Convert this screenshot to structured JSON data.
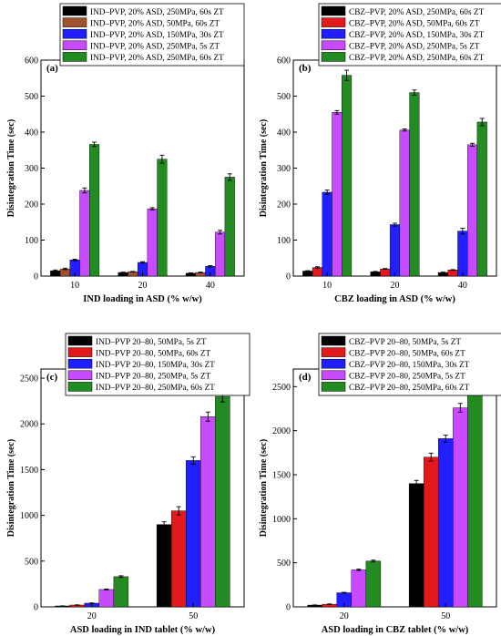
{
  "colors": {
    "black": "#000000",
    "red": "#e31a1c",
    "blue": "#1f1fff",
    "violet": "#7b2ff7",
    "magenta": "#c84bff",
    "green": "#228b22",
    "brown": "#a0522d",
    "light_purple": "#b05cff",
    "axis": "#000000"
  },
  "chart_data": [
    {
      "id": "a",
      "type": "bar",
      "panel_label": "(a)",
      "xlabel": "IND loading in ASD (% w/w)",
      "ylabel": "Disintegration Time (sec)",
      "ylim": [
        0,
        600
      ],
      "yticks": [
        0,
        100,
        200,
        300,
        400,
        500,
        600
      ],
      "categories": [
        "10",
        "20",
        "40"
      ],
      "legend_position": "top",
      "series": [
        {
          "name": "IND–PVP, 20% ASD, 250MPa, 60s ZT",
          "color": "#000000",
          "values": [
            15,
            10,
            8
          ],
          "errors": [
            2,
            1,
            1
          ]
        },
        {
          "name": "IND–PVP, 20% ASD, 50MPa, 60s ZT",
          "color": "#a0522d",
          "values": [
            20,
            12,
            10
          ],
          "errors": [
            2,
            1,
            1
          ]
        },
        {
          "name": "IND–PVP, 20% ASD, 150MPa, 30s ZT",
          "color": "#1f1fff",
          "values": [
            45,
            38,
            27
          ],
          "errors": [
            2,
            2,
            2
          ]
        },
        {
          "name": "IND–PVP, 20% ASD, 250MPa, 5s ZT",
          "color": "#c84bff",
          "values": [
            238,
            187,
            122
          ],
          "errors": [
            7,
            3,
            5
          ]
        },
        {
          "name": "IND–PVP, 20% ASD, 250MPa, 60s ZT",
          "color": "#228b22",
          "values": [
            366,
            325,
            275
          ],
          "errors": [
            6,
            11,
            9
          ]
        }
      ]
    },
    {
      "id": "b",
      "type": "bar",
      "panel_label": "(b)",
      "xlabel": "CBZ loading in ASD (% w/w)",
      "ylabel": "Disintegration Time (sec)",
      "ylim": [
        0,
        600
      ],
      "yticks": [
        0,
        100,
        200,
        300,
        400,
        500,
        600
      ],
      "categories": [
        "10",
        "20",
        "40"
      ],
      "legend_position": "top",
      "series": [
        {
          "name": "CBZ–PVP, 20% ASD, 250MPa, 60s ZT",
          "color": "#000000",
          "values": [
            14,
            12,
            10
          ],
          "errors": [
            1,
            1,
            1
          ]
        },
        {
          "name": "CBZ–PVP, 20% ASD, 50MPa, 60s ZT",
          "color": "#e31a1c",
          "values": [
            24,
            20,
            17
          ],
          "errors": [
            2,
            1,
            1
          ]
        },
        {
          "name": "CBZ–PVP, 20% ASD, 150MPa, 30s ZT",
          "color": "#1f1fff",
          "values": [
            233,
            143,
            125
          ],
          "errors": [
            6,
            4,
            8
          ]
        },
        {
          "name": "CBZ–PVP, 20% ASD, 250MPa, 5s ZT",
          "color": "#c84bff",
          "values": [
            455,
            406,
            365
          ],
          "errors": [
            5,
            3,
            4
          ]
        },
        {
          "name": "CBZ–PVP, 20% ASD, 250MPa, 60s ZT",
          "color": "#228b22",
          "values": [
            558,
            510,
            428
          ],
          "errors": [
            14,
            7,
            10
          ]
        }
      ]
    },
    {
      "id": "c",
      "type": "bar",
      "panel_label": "(c)",
      "xlabel": "ASD loading in IND tablet (% w/w)",
      "ylabel": "Disintegration Time (sec)",
      "ylim": [
        0,
        2600
      ],
      "yticks": [
        0,
        500,
        1000,
        1500,
        2000,
        2500
      ],
      "categories": [
        "20",
        "50"
      ],
      "legend_position": "top",
      "series": [
        {
          "name": "IND–PVP 20–80, 50MPa, 5s ZT",
          "color": "#000000",
          "values": [
            10,
            900
          ],
          "errors": [
            1,
            30
          ]
        },
        {
          "name": "IND–PVP 20–80, 50MPa, 60s ZT",
          "color": "#e31a1c",
          "values": [
            20,
            1050
          ],
          "errors": [
            2,
            45
          ]
        },
        {
          "name": "IND–PVP 20–80, 150MPa, 30s ZT",
          "color": "#1f1fff",
          "values": [
            40,
            1600
          ],
          "errors": [
            3,
            40
          ]
        },
        {
          "name": "IND–PVP 20–80, 250MPa, 5s ZT",
          "color": "#c84bff",
          "values": [
            190,
            2080
          ],
          "errors": [
            5,
            50
          ]
        },
        {
          "name": "IND–PVP 20–80, 250MPa, 60s ZT",
          "color": "#228b22",
          "values": [
            330,
            2300
          ],
          "errors": [
            10,
            60
          ]
        }
      ]
    },
    {
      "id": "d",
      "type": "bar",
      "panel_label": "(d)",
      "xlabel": "ASD loading in CBZ tablet (% w/w)",
      "ylabel": "Disintegration Time (sec)",
      "ylim": [
        0,
        2700
      ],
      "yticks": [
        0,
        500,
        1000,
        1500,
        2000,
        2500
      ],
      "categories": [
        "20",
        "50"
      ],
      "legend_position": "top",
      "series": [
        {
          "name": "CBZ–PVP 20–80, 50MPa, 5s ZT",
          "color": "#000000",
          "values": [
            20,
            1400
          ],
          "errors": [
            2,
            35
          ]
        },
        {
          "name": "CBZ–PVP 20–80, 50MPa, 60s ZT",
          "color": "#e31a1c",
          "values": [
            30,
            1700
          ],
          "errors": [
            3,
            45
          ]
        },
        {
          "name": "CBZ–PVP 20–80, 150MPa, 30s ZT",
          "color": "#1f1fff",
          "values": [
            160,
            1910
          ],
          "errors": [
            5,
            40
          ]
        },
        {
          "name": "CBZ–PVP 20–80, 250MPa, 5s ZT",
          "color": "#c84bff",
          "values": [
            420,
            2260
          ],
          "errors": [
            8,
            50
          ]
        },
        {
          "name": "CBZ–PVP 20–80, 250MPa, 60s ZT",
          "color": "#228b22",
          "values": [
            520,
            2540
          ],
          "errors": [
            10,
            60
          ]
        }
      ]
    }
  ]
}
